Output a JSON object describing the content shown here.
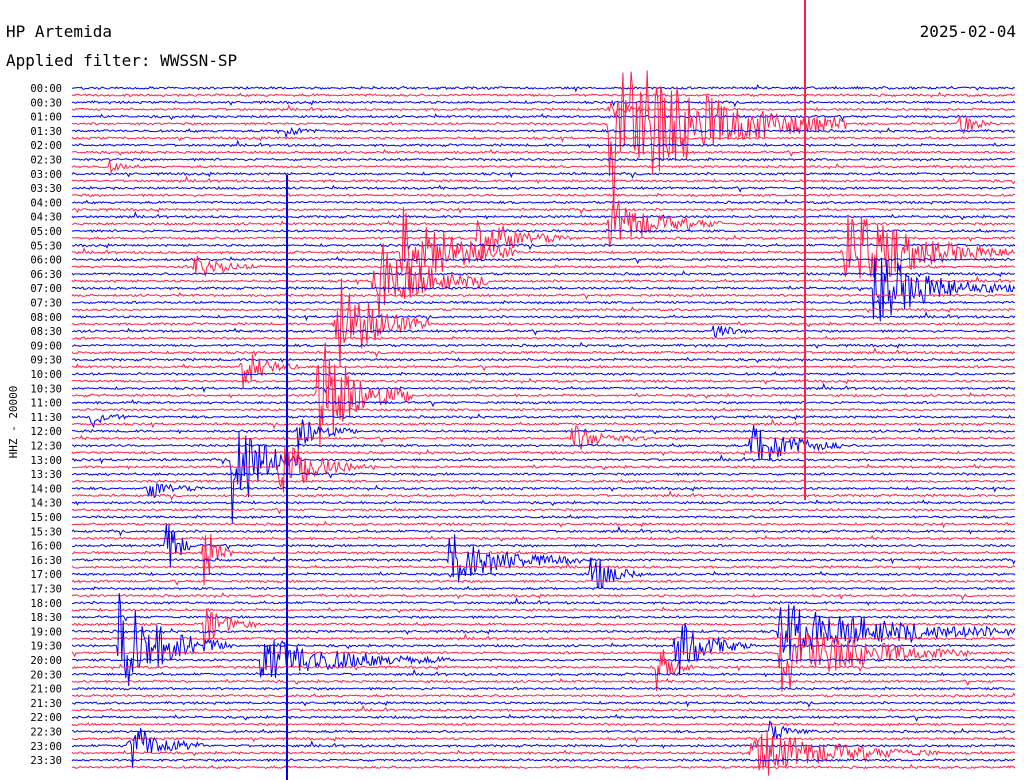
{
  "header": {
    "station": "HP Artemida",
    "date": "2025-02-04",
    "filter_label": "Applied filter: WWSSN-SP"
  },
  "chart_data": {
    "type": "helicorder",
    "title": "HP Artemida",
    "date": "2025-02-04",
    "filter": "WWSSN-SP",
    "channel_label": "HHZ - 20000",
    "line_interval_minutes": 15,
    "colors": {
      "blue": "#0000ee",
      "red": "#ff1f4b"
    },
    "tick_labels": [
      "00:00",
      "00:30",
      "01:00",
      "01:30",
      "02:00",
      "02:30",
      "03:00",
      "03:30",
      "04:00",
      "04:30",
      "05:00",
      "05:30",
      "06:00",
      "06:30",
      "07:00",
      "07:30",
      "08:00",
      "08:30",
      "09:00",
      "09:30",
      "10:00",
      "10:30",
      "11:00",
      "11:30",
      "12:00",
      "12:30",
      "13:00",
      "13:30",
      "14:00",
      "14:30",
      "15:00",
      "15:30",
      "16:00",
      "16:30",
      "17:00",
      "17:30",
      "18:00",
      "18:30",
      "19:00",
      "19:30",
      "20:00",
      "20:30",
      "21:00",
      "21:30",
      "22:00",
      "22:30",
      "23:00",
      "23:30"
    ],
    "grid": false
  }
}
